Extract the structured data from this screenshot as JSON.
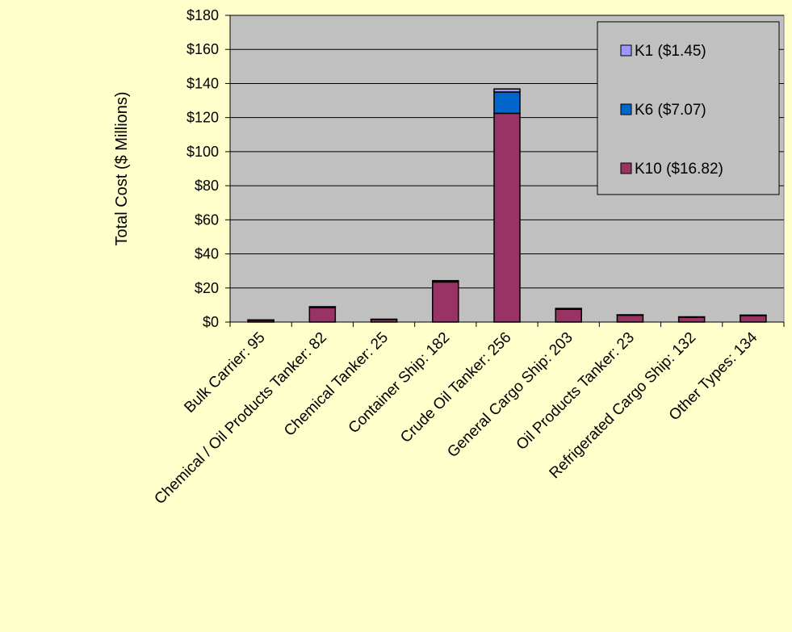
{
  "chart_data": {
    "type": "bar",
    "stacked": true,
    "title": "",
    "xlabel": "",
    "ylabel": "Total Cost ($ Millions)",
    "ylim": [
      0,
      180
    ],
    "ytick_step": 20,
    "ytick_prefix": "$",
    "grid": "horizontal",
    "legend_position": "top-right",
    "plot_background": "#c0c0c0",
    "categories": [
      "Bulk Carrier:  95",
      "Chemical / Oil Products Tanker:  82",
      "Chemical Tanker:  25",
      "Container Ship:  182",
      "Crude Oil Tanker:  256",
      "General Cargo Ship:  203",
      "Oil Products Tanker:  23",
      "Refrigerated Cargo Ship:  132",
      "Other Types:  134"
    ],
    "series": [
      {
        "name": "K10 ($16.82)",
        "color": "#993366",
        "values": [
          1.0,
          8.5,
          1.5,
          23.5,
          122.5,
          7.5,
          4.0,
          2.8,
          3.8
        ]
      },
      {
        "name": "K6 ($7.07)",
        "color": "#0066cc",
        "values": [
          0.2,
          0.4,
          0.1,
          0.7,
          12.5,
          0.4,
          0.2,
          0.2,
          0.2
        ]
      },
      {
        "name": "K1 ($1.45)",
        "color": "#9999ff",
        "values": [
          0.05,
          0.1,
          0.05,
          0.1,
          1.8,
          0.1,
          0.05,
          0.05,
          0.05
        ]
      }
    ],
    "legend_order": [
      2,
      1,
      0
    ]
  }
}
